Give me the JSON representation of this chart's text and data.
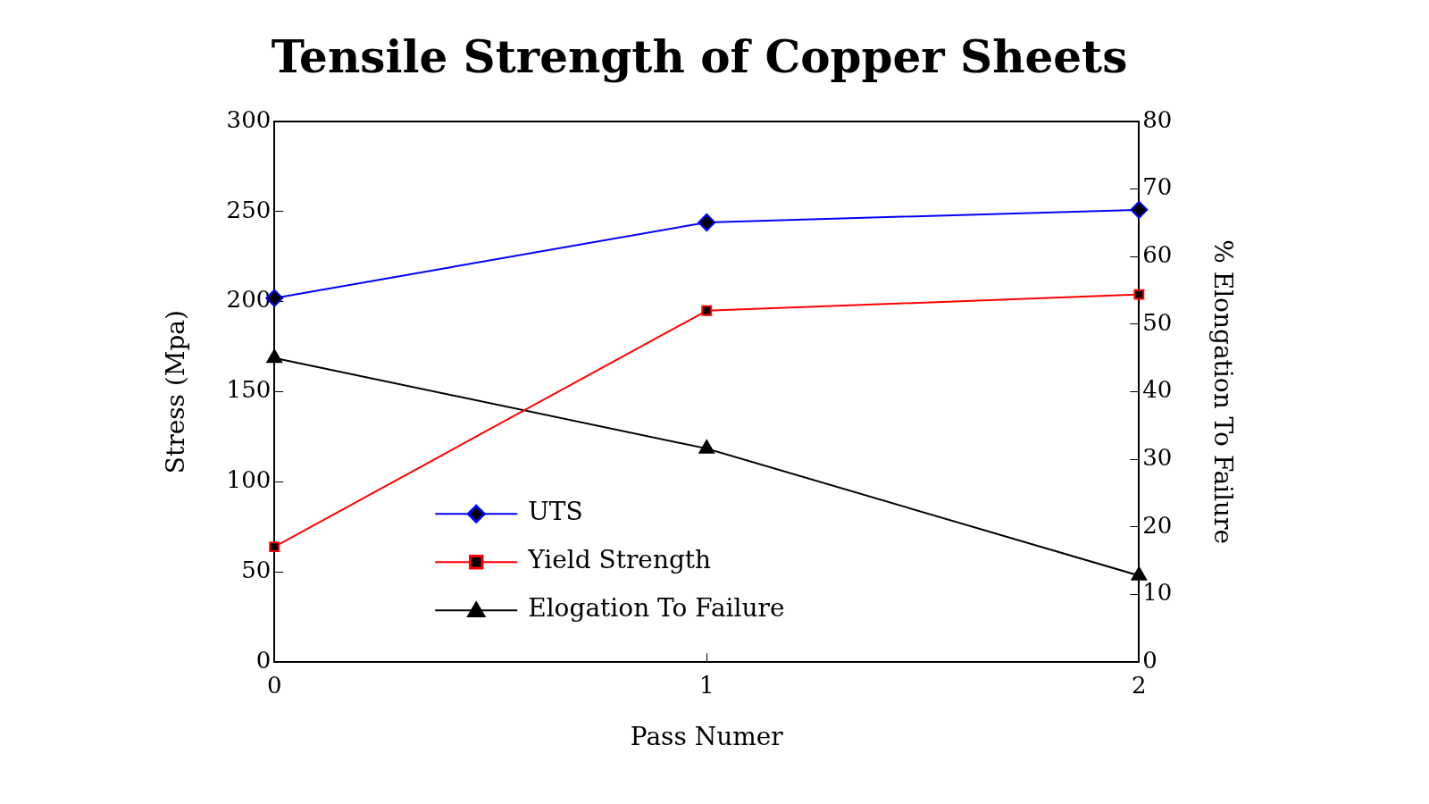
{
  "chart_data": {
    "type": "line",
    "title": "Tensile Strength of Copper Sheets",
    "xlabel": "Pass Numer",
    "ylabel": "Stress (Mpa)",
    "y2label": "% Elongation To Failure",
    "x": [
      0,
      1,
      2
    ],
    "xlim": [
      0,
      2
    ],
    "xticks": [
      0,
      1,
      2
    ],
    "ylim": [
      0,
      300
    ],
    "yticks": [
      0,
      50,
      100,
      150,
      200,
      250,
      300
    ],
    "y2lim": [
      0,
      80
    ],
    "y2ticks": [
      0,
      10,
      20,
      30,
      40,
      50,
      60,
      70,
      80
    ],
    "grid": false,
    "legend": "bottom left",
    "series": [
      {
        "name": "UTS",
        "color": "#0000ff",
        "marker": "diamond",
        "values": [
          202,
          244,
          251
        ]
      },
      {
        "name": "Yield Strength",
        "color": "#ff0000",
        "marker": "square",
        "values": [
          64,
          195,
          204
        ]
      },
      {
        "name": "Elogation To Failure",
        "color": "#000000",
        "marker": "triangle",
        "axis": "y2",
        "values": [
          45,
          31.6,
          12.8
        ]
      }
    ]
  }
}
